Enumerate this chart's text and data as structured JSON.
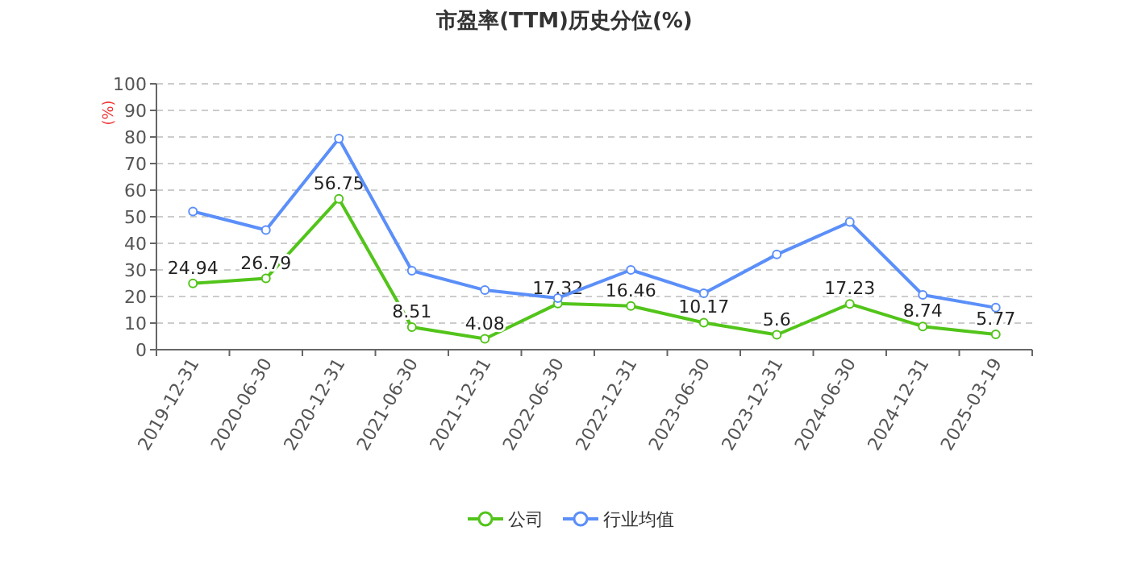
{
  "chart_data": {
    "type": "line",
    "title": "市盈率(TTM)历史分位(%)",
    "ylabel": "(%)",
    "categories": [
      "2019-12-31",
      "2020-06-30",
      "2020-12-31",
      "2021-06-30",
      "2021-12-31",
      "2022-06-30",
      "2022-12-31",
      "2023-06-30",
      "2023-12-31",
      "2024-06-30",
      "2024-12-31",
      "2025-03-19"
    ],
    "series": [
      {
        "name": "公司",
        "color": "#52c41a",
        "values": [
          24.94,
          26.79,
          56.75,
          8.51,
          4.08,
          17.32,
          16.46,
          10.17,
          5.6,
          17.23,
          8.74,
          5.77
        ],
        "value_labels": [
          "24.94",
          "26.79",
          "56.75",
          "8.51",
          "4.08",
          "17.32",
          "16.46",
          "10.17",
          "5.6",
          "17.23",
          "8.74",
          "5.77"
        ]
      },
      {
        "name": "行业均值",
        "color": "#5b8ff9",
        "values": [
          52,
          45,
          79.4,
          29.7,
          22.4,
          19.4,
          30,
          21.2,
          35.8,
          48,
          20.6,
          15.8
        ]
      }
    ],
    "ylim": [
      0,
      100
    ],
    "yticks": [
      0,
      10,
      20,
      30,
      40,
      50,
      60,
      70,
      80,
      90,
      100
    ],
    "grid": "y",
    "legend": "bottom",
    "marker": "circle",
    "line_style": "solid"
  }
}
